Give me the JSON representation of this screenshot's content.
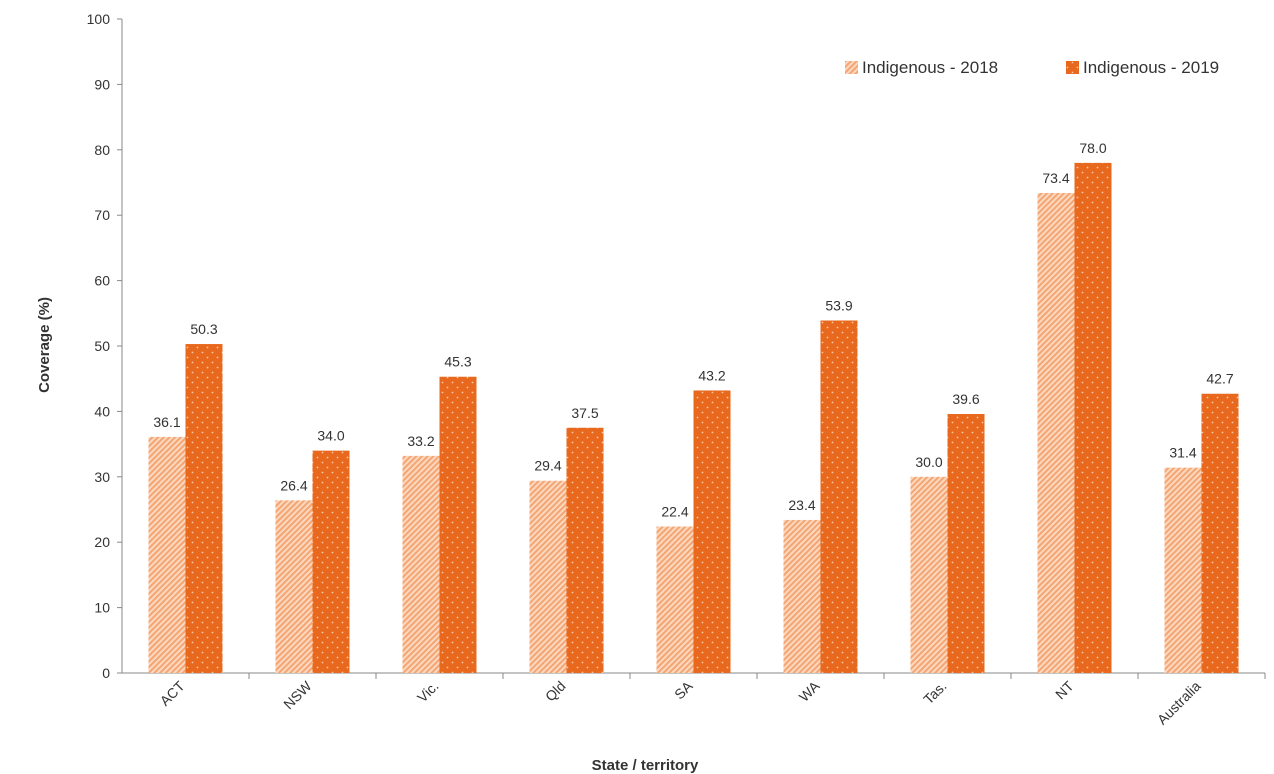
{
  "chart_data": {
    "type": "bar",
    "title": "",
    "xlabel": "State / territory",
    "ylabel": "Coverage (%)",
    "ylim": [
      0,
      100
    ],
    "yticks": [
      "0",
      "10",
      "20",
      "30",
      "40",
      "50",
      "60",
      "70",
      "80",
      "90",
      "100"
    ],
    "categories": [
      "ACT",
      "NSW",
      "Vic.",
      "Qld",
      "SA",
      "WA",
      "Tas.",
      "NT",
      "Australia"
    ],
    "series": [
      {
        "name": "Indigenous - 2018",
        "values": [
          36.1,
          26.4,
          33.2,
          29.4,
          22.4,
          23.4,
          30.0,
          73.4,
          31.4
        ],
        "labels": [
          "36.1",
          "26.4",
          "33.2",
          "29.4",
          "22.4",
          "23.4",
          "30.0",
          "73.4",
          "31.4"
        ],
        "color": "#F5A572",
        "pattern": "diagonal-hatch"
      },
      {
        "name": "Indigenous - 2019",
        "values": [
          50.3,
          34.0,
          45.3,
          37.5,
          43.2,
          53.9,
          39.6,
          78.0,
          42.7
        ],
        "labels": [
          "50.3",
          "34.0",
          "45.3",
          "37.5",
          "43.2",
          "53.9",
          "39.6",
          "78.0",
          "42.7"
        ],
        "color": "#E8681E",
        "pattern": "dotted"
      }
    ],
    "legend": "top-right",
    "grid": false
  }
}
